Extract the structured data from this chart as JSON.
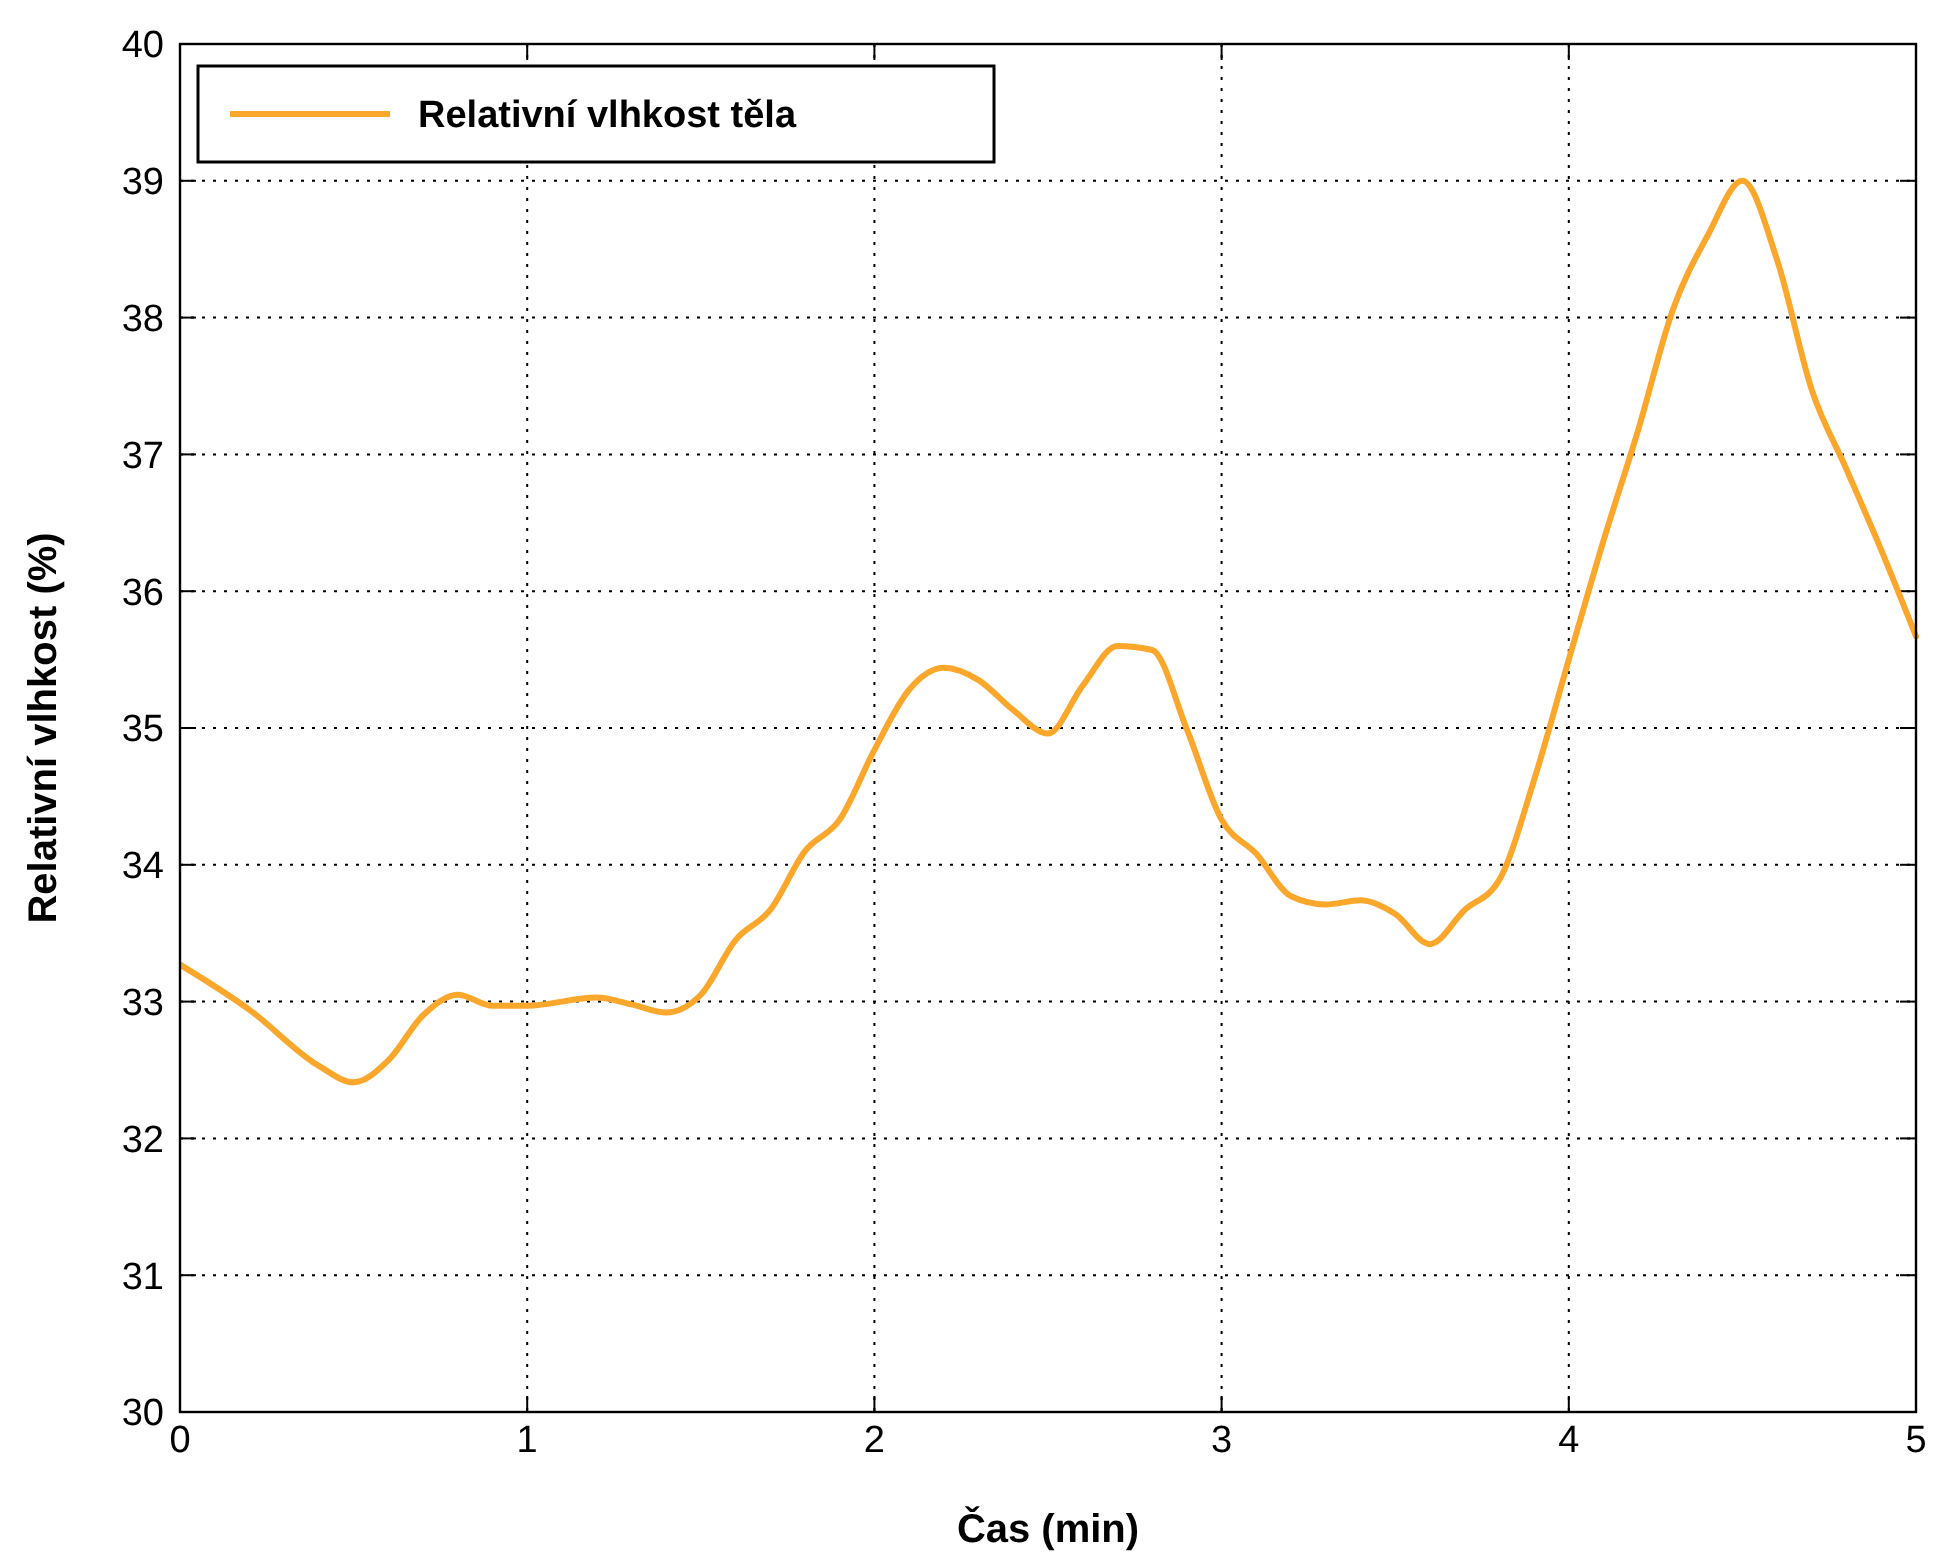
{
  "chart_data": {
    "type": "line",
    "xlabel": "Čas (min)",
    "ylabel": "Relativní vlhkost (%)",
    "xlim": [
      0,
      5
    ],
    "xticks": [
      0,
      1,
      2,
      3,
      4,
      5
    ],
    "ylim": [
      30,
      40
    ],
    "yticks": [
      30,
      31,
      32,
      33,
      34,
      35,
      36,
      37,
      38,
      39,
      40
    ],
    "grid": true,
    "legend": "top left",
    "line_style": "solid",
    "marker": "none",
    "x": [
      0,
      0.2,
      0.4,
      0.5,
      0.6,
      0.7,
      0.8,
      0.9,
      1.0,
      1.2,
      1.3,
      1.4,
      1.5,
      1.6,
      1.7,
      1.8,
      1.9,
      2.0,
      2.1,
      2.2,
      2.3,
      2.4,
      2.5,
      2.6,
      2.7,
      2.8,
      2.9,
      3.0,
      3.1,
      3.2,
      3.3,
      3.4,
      3.5,
      3.6,
      3.7,
      3.8,
      3.9,
      4.0,
      4.1,
      4.2,
      4.3,
      4.4,
      4.5,
      4.6,
      4.7,
      4.8,
      4.9,
      5.0
    ],
    "series": [
      {
        "name": "Relativní vlhkost těla",
        "color": "#fba72c",
        "values": [
          33.27,
          32.94,
          32.53,
          32.41,
          32.57,
          32.9,
          33.05,
          32.97,
          32.97,
          33.03,
          32.98,
          32.92,
          33.05,
          33.45,
          33.67,
          34.1,
          34.33,
          34.84,
          35.28,
          35.44,
          35.35,
          35.13,
          34.96,
          35.31,
          35.6,
          35.57,
          34.99,
          34.33,
          34.08,
          33.77,
          33.71,
          33.74,
          33.64,
          33.42,
          33.67,
          33.89,
          34.62,
          35.5,
          36.37,
          37.18,
          38.06,
          38.6,
          39.0,
          38.42,
          37.47,
          36.89,
          36.3,
          35.67
        ]
      }
    ]
  }
}
